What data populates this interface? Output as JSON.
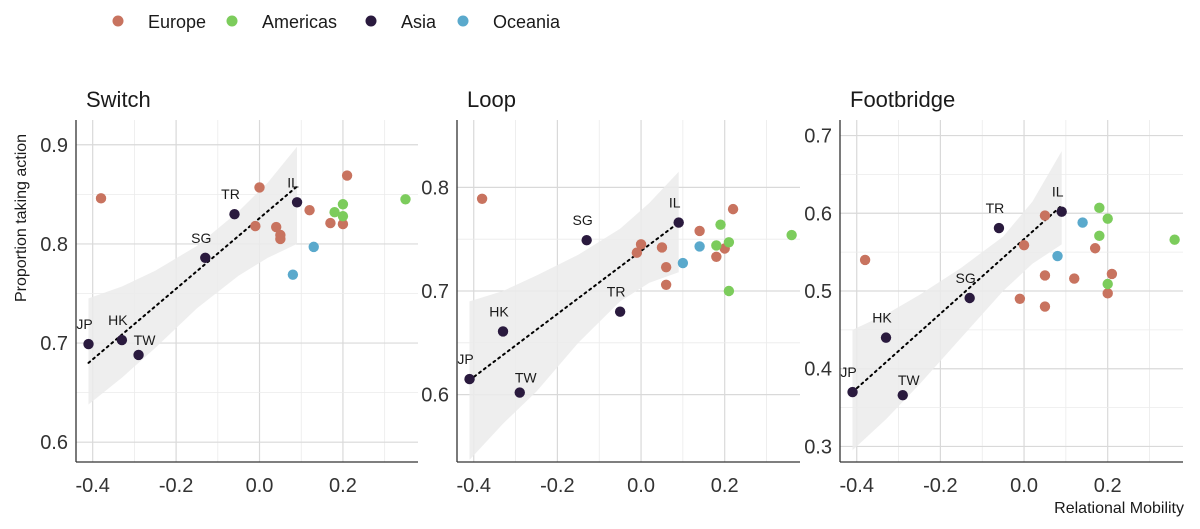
{
  "legend": {
    "position": "top-left",
    "items": [
      {
        "label": "Europe",
        "color": "#c8735f"
      },
      {
        "label": "Americas",
        "color": "#7ccc5c"
      },
      {
        "label": "Asia",
        "color": "#2a1a3e"
      },
      {
        "label": "Oceania",
        "color": "#5aa9cc"
      }
    ]
  },
  "shared": {
    "xlabel": "Relational Mobility",
    "ylabel": "Proportion taking action",
    "xlim": [
      -0.44,
      0.38
    ],
    "xticks": [
      -0.4,
      -0.2,
      0.0,
      0.2
    ],
    "xtick_labels": [
      "-0.4",
      "-0.2",
      "0.0",
      "0.2"
    ],
    "fit_color": "#000000",
    "band_color": "#ebebeb"
  },
  "chart_data": [
    {
      "type": "scatter",
      "title": "Switch",
      "ylim": [
        0.58,
        0.925
      ],
      "yticks": [
        0.6,
        0.7,
        0.8,
        0.9
      ],
      "ytick_labels": [
        "0.6",
        "0.7",
        "0.8",
        "0.9"
      ],
      "fit": {
        "x": [
          -0.41,
          0.09
        ],
        "y": [
          0.68,
          0.858
        ]
      },
      "band": {
        "x": [
          -0.41,
          -0.33,
          -0.25,
          -0.15,
          -0.05,
          0.02,
          0.09
        ],
        "upper": [
          0.745,
          0.757,
          0.773,
          0.798,
          0.833,
          0.862,
          0.898
        ],
        "lower": [
          0.638,
          0.665,
          0.695,
          0.735,
          0.768,
          0.786,
          0.8
        ]
      },
      "points": [
        {
          "x": -0.41,
          "y": 0.699,
          "group": "Asia",
          "label": "JP"
        },
        {
          "x": -0.33,
          "y": 0.703,
          "group": "Asia",
          "label": "HK"
        },
        {
          "x": -0.29,
          "y": 0.688,
          "group": "Asia",
          "label": "TW"
        },
        {
          "x": -0.13,
          "y": 0.786,
          "group": "Asia",
          "label": "SG"
        },
        {
          "x": -0.06,
          "y": 0.83,
          "group": "Asia",
          "label": "TR"
        },
        {
          "x": 0.09,
          "y": 0.842,
          "group": "Asia",
          "label": "IL"
        },
        {
          "x": -0.38,
          "y": 0.846,
          "group": "Europe",
          "label": ""
        },
        {
          "x": 0.0,
          "y": 0.857,
          "group": "Europe",
          "label": ""
        },
        {
          "x": -0.01,
          "y": 0.818,
          "group": "Europe",
          "label": ""
        },
        {
          "x": 0.04,
          "y": 0.817,
          "group": "Europe",
          "label": ""
        },
        {
          "x": 0.05,
          "y": 0.809,
          "group": "Europe",
          "label": ""
        },
        {
          "x": 0.05,
          "y": 0.805,
          "group": "Europe",
          "label": ""
        },
        {
          "x": 0.12,
          "y": 0.834,
          "group": "Europe",
          "label": ""
        },
        {
          "x": 0.17,
          "y": 0.821,
          "group": "Europe",
          "label": ""
        },
        {
          "x": 0.2,
          "y": 0.82,
          "group": "Europe",
          "label": ""
        },
        {
          "x": 0.21,
          "y": 0.869,
          "group": "Europe",
          "label": ""
        },
        {
          "x": 0.18,
          "y": 0.832,
          "group": "Americas",
          "label": ""
        },
        {
          "x": 0.2,
          "y": 0.84,
          "group": "Americas",
          "label": ""
        },
        {
          "x": 0.2,
          "y": 0.828,
          "group": "Americas",
          "label": ""
        },
        {
          "x": 0.35,
          "y": 0.845,
          "group": "Americas",
          "label": ""
        },
        {
          "x": 0.13,
          "y": 0.797,
          "group": "Oceania",
          "label": ""
        },
        {
          "x": 0.08,
          "y": 0.769,
          "group": "Oceania",
          "label": ""
        }
      ]
    },
    {
      "type": "scatter",
      "title": "Loop",
      "ylim": [
        0.535,
        0.865
      ],
      "yticks": [
        0.6,
        0.7,
        0.8
      ],
      "ytick_labels": [
        "0.6",
        "0.7",
        "0.8"
      ],
      "fit": {
        "x": [
          -0.41,
          0.09
        ],
        "y": [
          0.614,
          0.766
        ]
      },
      "band": {
        "x": [
          -0.41,
          -0.33,
          -0.25,
          -0.15,
          -0.05,
          0.02,
          0.09
        ],
        "upper": [
          0.69,
          0.7,
          0.715,
          0.735,
          0.76,
          0.785,
          0.815
        ],
        "lower": [
          0.537,
          0.572,
          0.603,
          0.65,
          0.69,
          0.708,
          0.718
        ]
      },
      "points": [
        {
          "x": -0.41,
          "y": 0.615,
          "group": "Asia",
          "label": "JP"
        },
        {
          "x": -0.33,
          "y": 0.661,
          "group": "Asia",
          "label": "HK"
        },
        {
          "x": -0.29,
          "y": 0.602,
          "group": "Asia",
          "label": "TW"
        },
        {
          "x": -0.13,
          "y": 0.749,
          "group": "Asia",
          "label": "SG"
        },
        {
          "x": -0.05,
          "y": 0.68,
          "group": "Asia",
          "label": "TR"
        },
        {
          "x": 0.09,
          "y": 0.766,
          "group": "Asia",
          "label": "IL"
        },
        {
          "x": -0.38,
          "y": 0.789,
          "group": "Europe",
          "label": ""
        },
        {
          "x": 0.0,
          "y": 0.745,
          "group": "Europe",
          "label": ""
        },
        {
          "x": -0.01,
          "y": 0.737,
          "group": "Europe",
          "label": ""
        },
        {
          "x": 0.05,
          "y": 0.742,
          "group": "Europe",
          "label": ""
        },
        {
          "x": 0.06,
          "y": 0.723,
          "group": "Europe",
          "label": ""
        },
        {
          "x": 0.06,
          "y": 0.706,
          "group": "Europe",
          "label": ""
        },
        {
          "x": 0.14,
          "y": 0.758,
          "group": "Europe",
          "label": ""
        },
        {
          "x": 0.18,
          "y": 0.733,
          "group": "Europe",
          "label": ""
        },
        {
          "x": 0.2,
          "y": 0.741,
          "group": "Europe",
          "label": ""
        },
        {
          "x": 0.22,
          "y": 0.779,
          "group": "Europe",
          "label": ""
        },
        {
          "x": 0.19,
          "y": 0.764,
          "group": "Americas",
          "label": ""
        },
        {
          "x": 0.18,
          "y": 0.744,
          "group": "Americas",
          "label": ""
        },
        {
          "x": 0.21,
          "y": 0.747,
          "group": "Americas",
          "label": ""
        },
        {
          "x": 0.21,
          "y": 0.7,
          "group": "Americas",
          "label": ""
        },
        {
          "x": 0.36,
          "y": 0.754,
          "group": "Americas",
          "label": ""
        },
        {
          "x": 0.14,
          "y": 0.743,
          "group": "Oceania",
          "label": ""
        },
        {
          "x": 0.1,
          "y": 0.727,
          "group": "Oceania",
          "label": ""
        }
      ]
    },
    {
      "type": "scatter",
      "title": "Footbridge",
      "ylim": [
        0.28,
        0.72
      ],
      "yticks": [
        0.3,
        0.4,
        0.5,
        0.6,
        0.7
      ],
      "ytick_labels": [
        "0.3",
        "0.4",
        "0.5",
        "0.6",
        "0.7"
      ],
      "fit": {
        "x": [
          -0.41,
          0.09
        ],
        "y": [
          0.37,
          0.61
        ]
      },
      "band": {
        "x": [
          -0.41,
          -0.33,
          -0.25,
          -0.15,
          -0.05,
          0.02,
          0.09
        ],
        "upper": [
          0.45,
          0.47,
          0.495,
          0.53,
          0.57,
          0.615,
          0.68
        ],
        "lower": [
          0.295,
          0.335,
          0.38,
          0.44,
          0.5,
          0.535,
          0.56
        ]
      },
      "points": [
        {
          "x": -0.41,
          "y": 0.37,
          "group": "Asia",
          "label": "JP"
        },
        {
          "x": -0.33,
          "y": 0.44,
          "group": "Asia",
          "label": "HK"
        },
        {
          "x": -0.29,
          "y": 0.366,
          "group": "Asia",
          "label": "TW"
        },
        {
          "x": -0.13,
          "y": 0.491,
          "group": "Asia",
          "label": "SG"
        },
        {
          "x": -0.06,
          "y": 0.581,
          "group": "Asia",
          "label": "TR"
        },
        {
          "x": 0.09,
          "y": 0.602,
          "group": "Asia",
          "label": "IL"
        },
        {
          "x": -0.38,
          "y": 0.54,
          "group": "Europe",
          "label": ""
        },
        {
          "x": 0.0,
          "y": 0.559,
          "group": "Europe",
          "label": ""
        },
        {
          "x": -0.01,
          "y": 0.49,
          "group": "Europe",
          "label": ""
        },
        {
          "x": 0.05,
          "y": 0.597,
          "group": "Europe",
          "label": ""
        },
        {
          "x": 0.05,
          "y": 0.52,
          "group": "Europe",
          "label": ""
        },
        {
          "x": 0.05,
          "y": 0.48,
          "group": "Europe",
          "label": ""
        },
        {
          "x": 0.12,
          "y": 0.516,
          "group": "Europe",
          "label": ""
        },
        {
          "x": 0.17,
          "y": 0.555,
          "group": "Europe",
          "label": ""
        },
        {
          "x": 0.2,
          "y": 0.497,
          "group": "Europe",
          "label": ""
        },
        {
          "x": 0.21,
          "y": 0.522,
          "group": "Europe",
          "label": ""
        },
        {
          "x": 0.18,
          "y": 0.607,
          "group": "Americas",
          "label": ""
        },
        {
          "x": 0.2,
          "y": 0.593,
          "group": "Americas",
          "label": ""
        },
        {
          "x": 0.18,
          "y": 0.571,
          "group": "Americas",
          "label": ""
        },
        {
          "x": 0.2,
          "y": 0.509,
          "group": "Americas",
          "label": ""
        },
        {
          "x": 0.36,
          "y": 0.566,
          "group": "Americas",
          "label": ""
        },
        {
          "x": 0.14,
          "y": 0.588,
          "group": "Oceania",
          "label": ""
        },
        {
          "x": 0.08,
          "y": 0.545,
          "group": "Oceania",
          "label": ""
        }
      ]
    }
  ]
}
